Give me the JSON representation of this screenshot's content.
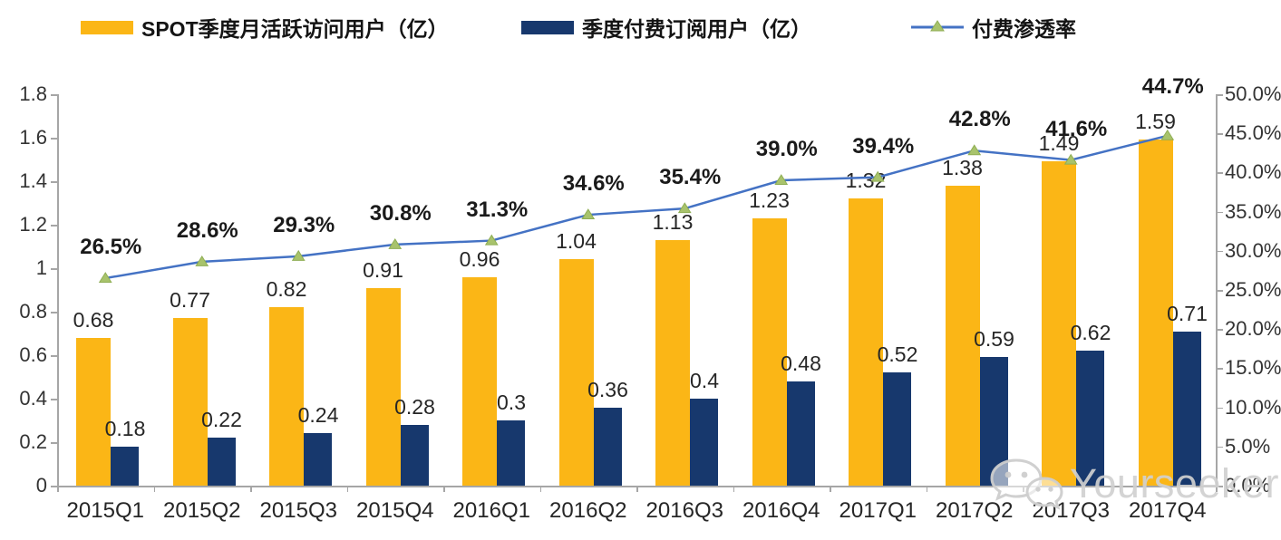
{
  "watermark": {
    "text": "Yourseeker",
    "icon": "wechat-icon"
  },
  "colors": {
    "mau_bar": "#FBB616",
    "subs_bar": "#17386D",
    "line": "#4472C4",
    "marker_fill": "#A8C36C",
    "marker_stroke": "#8FAE54",
    "axis": "#A6A6A6",
    "text": "#262626",
    "watermark": "#D0D0D0"
  },
  "chart_data": {
    "type": "bar",
    "subtype": "combo-bar-line",
    "title": "",
    "categories": [
      "2015Q1",
      "2015Q2",
      "2015Q3",
      "2015Q4",
      "2016Q1",
      "2016Q2",
      "2016Q3",
      "2016Q4",
      "2017Q1",
      "2017Q2",
      "2017Q3",
      "2017Q4"
    ],
    "series": [
      {
        "name": "SPOT季度月活跃访问用户（亿）",
        "type": "bar",
        "axis": "left",
        "color": "#FBB616",
        "values": [
          0.68,
          0.77,
          0.82,
          0.91,
          0.96,
          1.04,
          1.13,
          1.23,
          1.32,
          1.38,
          1.49,
          1.59
        ],
        "labels": [
          "0.68",
          "0.77",
          "0.82",
          "0.91",
          "0.96",
          "1.04",
          "1.13",
          "1.23",
          "1.32",
          "1.38",
          "1.49",
          "1.59"
        ]
      },
      {
        "name": "季度付费订阅用户（亿）",
        "type": "bar",
        "axis": "left",
        "color": "#17386D",
        "values": [
          0.18,
          0.22,
          0.24,
          0.28,
          0.3,
          0.36,
          0.4,
          0.48,
          0.52,
          0.59,
          0.62,
          0.71
        ],
        "labels": [
          "0.18",
          "0.22",
          "0.24",
          "0.28",
          "0.3",
          "0.36",
          "0.4",
          "0.48",
          "0.52",
          "0.59",
          "0.62",
          "0.71"
        ]
      },
      {
        "name": "付费渗透率",
        "type": "line",
        "axis": "right",
        "color": "#4472C4",
        "marker": "triangle",
        "marker_color": "#A8C36C",
        "values": [
          26.5,
          28.6,
          29.3,
          30.8,
          31.3,
          34.6,
          35.4,
          39.0,
          39.4,
          42.8,
          41.6,
          44.7
        ],
        "labels": [
          "26.5%",
          "28.6%",
          "29.3%",
          "30.8%",
          "31.3%",
          "34.6%",
          "35.4%",
          "39.0%",
          "39.4%",
          "42.8%",
          "41.6%",
          "44.7%"
        ]
      }
    ],
    "left_axis": {
      "min": 0,
      "max": 1.8,
      "tick_labels": [
        "0",
        "0.2",
        "0.4",
        "0.6",
        "0.8",
        "1",
        "1.2",
        "1.4",
        "1.6",
        "1.8"
      ]
    },
    "right_axis": {
      "min": 0,
      "max": 50,
      "tick_labels": [
        "0.0%",
        "5.0%",
        "10.0%",
        "15.0%",
        "20.0%",
        "25.0%",
        "30.0%",
        "35.0%",
        "40.0%",
        "45.0%",
        "50.0%"
      ]
    },
    "grid": false,
    "legend_position": "top"
  }
}
